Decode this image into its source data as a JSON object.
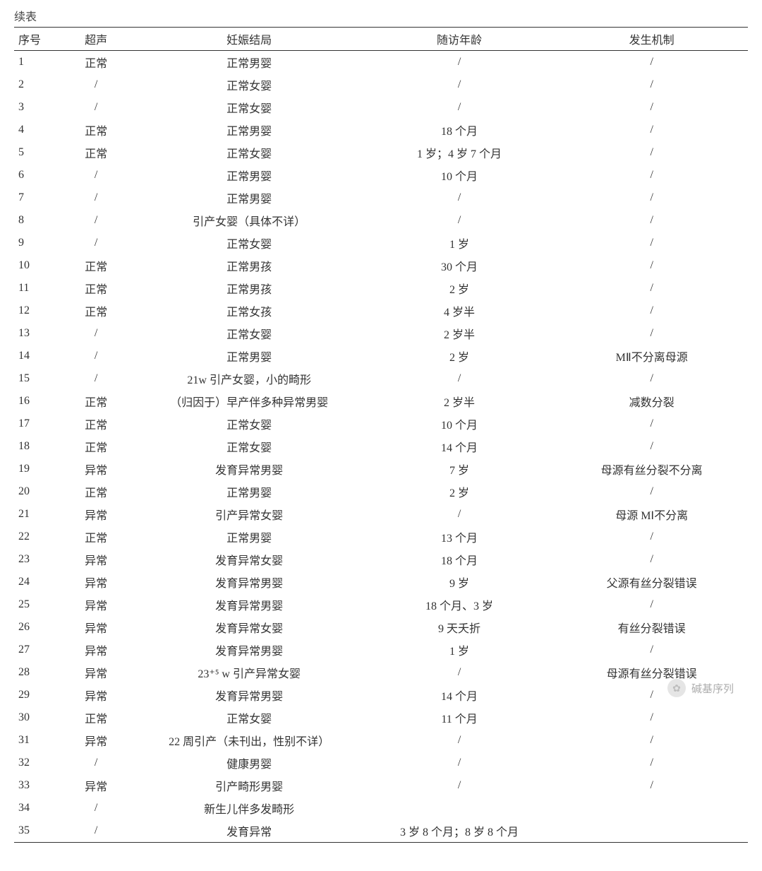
{
  "caption": "续表",
  "table": {
    "headers": [
      "序号",
      "超声",
      "妊娠结局",
      "随访年龄",
      "发生机制"
    ],
    "rows": [
      [
        "1",
        "正常",
        "正常男婴",
        "/",
        "/"
      ],
      [
        "2",
        "/",
        "正常女婴",
        "/",
        "/"
      ],
      [
        "3",
        "/",
        "正常女婴",
        "/",
        "/"
      ],
      [
        "4",
        "正常",
        "正常男婴",
        "18 个月",
        "/"
      ],
      [
        "5",
        "正常",
        "正常女婴",
        "1 岁；4 岁 7 个月",
        "/"
      ],
      [
        "6",
        "/",
        "正常男婴",
        "10 个月",
        "/"
      ],
      [
        "7",
        "/",
        "正常男婴",
        "/",
        "/"
      ],
      [
        "8",
        "/",
        "引产女婴（具体不详）",
        "/",
        "/"
      ],
      [
        "9",
        "/",
        "正常女婴",
        "1 岁",
        "/"
      ],
      [
        "10",
        "正常",
        "正常男孩",
        "30 个月",
        "/"
      ],
      [
        "11",
        "正常",
        "正常男孩",
        "2 岁",
        "/"
      ],
      [
        "12",
        "正常",
        "正常女孩",
        "4 岁半",
        "/"
      ],
      [
        "13",
        "/",
        "正常女婴",
        "2 岁半",
        "/"
      ],
      [
        "14",
        "/",
        "正常男婴",
        "2 岁",
        "MⅡ不分离母源"
      ],
      [
        "15",
        "/",
        "21w 引产女婴，小的畸形",
        "/",
        "/"
      ],
      [
        "16",
        "正常",
        "（归因于）早产伴多种异常男婴",
        "2 岁半",
        "减数分裂"
      ],
      [
        "17",
        "正常",
        "正常女婴",
        "10 个月",
        "/"
      ],
      [
        "18",
        "正常",
        "正常女婴",
        "14 个月",
        "/"
      ],
      [
        "19",
        "异常",
        "发育异常男婴",
        "7 岁",
        "母源有丝分裂不分离"
      ],
      [
        "20",
        "正常",
        "正常男婴",
        "2 岁",
        "/"
      ],
      [
        "21",
        "异常",
        "引产异常女婴",
        "/",
        "母源 MⅠ不分离"
      ],
      [
        "22",
        "正常",
        "正常男婴",
        "13 个月",
        "/"
      ],
      [
        "23",
        "异常",
        "发育异常女婴",
        "18 个月",
        "/"
      ],
      [
        "24",
        "异常",
        "发育异常男婴",
        "9 岁",
        "父源有丝分裂错误"
      ],
      [
        "25",
        "异常",
        "发育异常男婴",
        "18 个月、3 岁",
        "/"
      ],
      [
        "26",
        "异常",
        "发育异常女婴",
        "9 天夭折",
        "有丝分裂错误"
      ],
      [
        "27",
        "异常",
        "发育异常男婴",
        "1 岁",
        "/"
      ],
      [
        "28",
        "异常",
        "23⁺⁵ w 引产异常女婴",
        "/",
        "母源有丝分裂错误"
      ],
      [
        "29",
        "异常",
        "发育异常男婴",
        "14 个月",
        "/"
      ],
      [
        "30",
        "正常",
        "正常女婴",
        "11 个月",
        "/"
      ],
      [
        "31",
        "异常",
        "22 周引产（未刊出，性别不详）",
        "/",
        "/"
      ],
      [
        "32",
        "/",
        "健康男婴",
        "/",
        "/"
      ],
      [
        "33",
        "异常",
        "引产畸形男婴",
        "/",
        "/"
      ],
      [
        "34",
        "/",
        "新生儿伴多发畸形",
        "",
        ""
      ],
      [
        "35",
        "/",
        "发育异常",
        "3 岁 8 个月；8 岁 8 个月",
        ""
      ]
    ]
  },
  "watermark": {
    "text": "碱基序列",
    "icon": "✿"
  },
  "style": {
    "text_color": "#333333",
    "border_color": "#333333",
    "background": "#ffffff",
    "font_family": "SimSun",
    "font_size_pt": 12,
    "watermark_color": "#6b6b6b"
  }
}
